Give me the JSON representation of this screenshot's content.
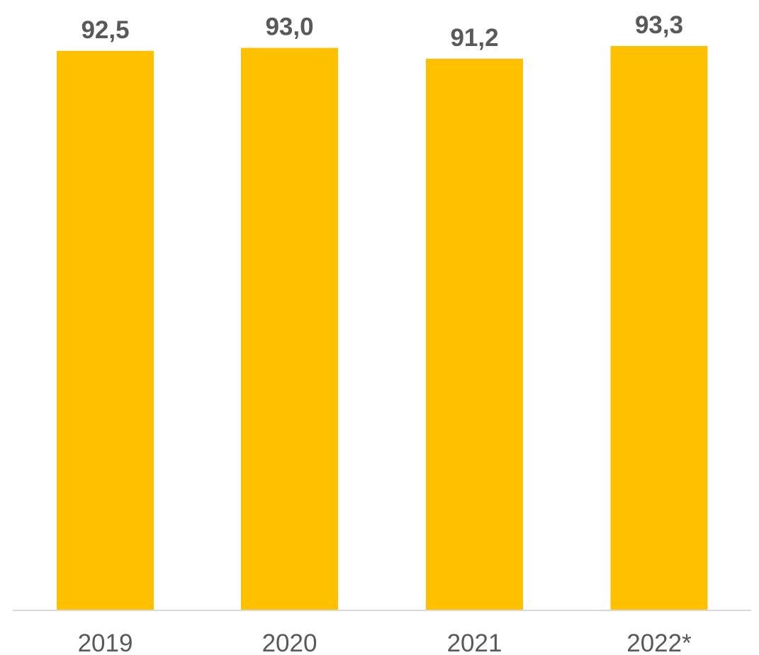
{
  "chart_data": {
    "type": "bar",
    "title": "",
    "xlabel": "",
    "ylabel": "",
    "categories": [
      "2019",
      "2020",
      "2021",
      "2022*"
    ],
    "values": [
      92.5,
      93.0,
      91.2,
      93.3
    ],
    "data_labels": [
      "92,5",
      "93,0",
      "91,2",
      "93,3"
    ],
    "bar_color": "#FFC000",
    "label_color": "#595959",
    "axis_color": "#D9D9D9",
    "grid": false,
    "legend": "none"
  }
}
